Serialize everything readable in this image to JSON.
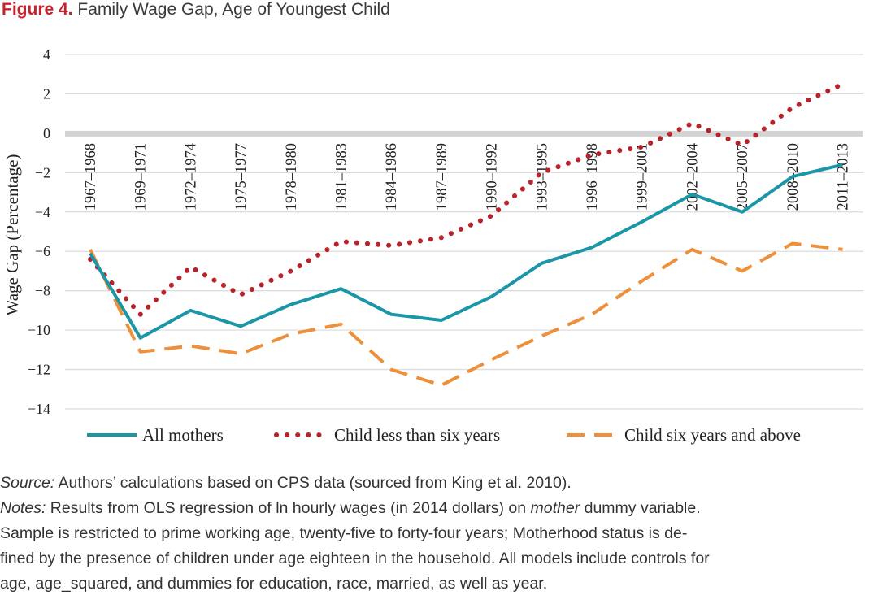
{
  "figure": {
    "label": "Figure 4.",
    "title": "Family Wage Gap, Age of Youngest Child"
  },
  "colors": {
    "accent": "#c8232b",
    "all_mothers": "#1a96a6",
    "child_under_six": "#b8222b",
    "child_six_plus": "#ee8f3a",
    "grid": "#dddddd",
    "zero_band": "#d4d4d4"
  },
  "chart_data": {
    "type": "line",
    "ylabel": "Wage Gap (Percentage)",
    "ylim": [
      -14,
      4
    ],
    "yticks": [
      4,
      2,
      0,
      -2,
      -4,
      -6,
      -8,
      -10,
      -12,
      -14
    ],
    "ytick_labels": [
      "4",
      "2",
      "0",
      "−2",
      "−4",
      "−6",
      "−8",
      "−10",
      "−12",
      "−14"
    ],
    "categories": [
      "1967–1968",
      "1969–1971",
      "1972–1974",
      "1975–1977",
      "1978–1980",
      "1981–1983",
      "1984–1986",
      "1987–1989",
      "1990–1992",
      "1993–1995",
      "1996–1998",
      "1999–2001",
      "2002–2004",
      "2005–2007",
      "2008–2010",
      "2011–2013"
    ],
    "grid": true,
    "legend_position": "bottom",
    "series": [
      {
        "name": "All mothers",
        "style": "solid",
        "values": [
          -6.1,
          -10.4,
          -9.0,
          -9.8,
          -8.7,
          -7.9,
          -9.2,
          -9.5,
          -8.3,
          -6.6,
          -5.8,
          -4.5,
          -3.1,
          -4.0,
          -2.2,
          -1.6
        ]
      },
      {
        "name": "Child less than six years",
        "style": "dotted",
        "values": [
          -6.4,
          -9.2,
          -6.8,
          -8.2,
          -7.0,
          -5.5,
          -5.7,
          -5.3,
          -4.2,
          -2.0,
          -1.1,
          -0.7,
          0.5,
          -0.6,
          1.3,
          2.5
        ]
      },
      {
        "name": "Child six years and above",
        "style": "dashed",
        "values": [
          -5.9,
          -11.1,
          -10.8,
          -11.2,
          -10.2,
          -9.7,
          -12.0,
          -12.8,
          -11.5,
          -10.3,
          -9.2,
          -7.5,
          -5.9,
          -7.0,
          -5.6,
          -5.9
        ]
      }
    ]
  },
  "notes": {
    "source_label": "Source:",
    "source_text": " Authors’ calculations based on CPS data (sourced from King et al. 2010).",
    "notes_label": "Notes:",
    "notes_line1_a": " Results from OLS regression of ln hourly wages (in 2014 dollars) on ",
    "notes_line1_em": "mother",
    "notes_line1_b": " dummy variable.",
    "notes_line2": "Sample is restricted to prime working age, twenty-five to forty-four years; Motherhood status is de-",
    "notes_line3": "fined by the presence of children under age eighteen in the household. All models include controls for",
    "notes_line4": "age, age_squared, and dummies for education, race, married, as well as year."
  }
}
